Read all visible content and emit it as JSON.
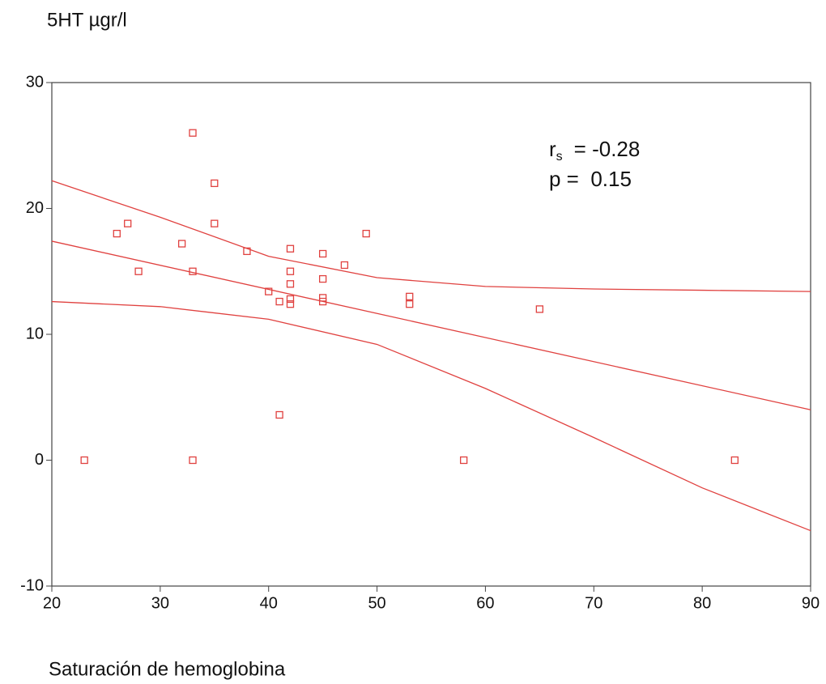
{
  "chart_data": {
    "type": "scatter",
    "y_label": "5HT µgr/l",
    "x_label": "Saturación de hemoglobina",
    "annotations": [
      {
        "symbol": "r",
        "subscript": "s",
        "text": "= -0.28"
      },
      {
        "text": "p =  0.15"
      }
    ],
    "xlim": [
      20,
      90
    ],
    "ylim": [
      -10,
      30
    ],
    "xticks": [
      20,
      30,
      40,
      50,
      60,
      70,
      80,
      90
    ],
    "yticks": [
      -10,
      0,
      10,
      20,
      30
    ],
    "grid": false,
    "series": [
      {
        "type": "scatter",
        "marker": "square",
        "color": "#e0413f",
        "x": [
          23,
          26,
          27,
          28,
          32,
          33,
          33,
          33,
          35,
          35,
          38,
          40,
          41,
          41,
          42,
          42,
          42,
          42,
          42,
          45,
          45,
          45,
          45,
          47,
          49,
          53,
          53,
          58,
          65,
          83
        ],
        "values": [
          0,
          18,
          18.8,
          15,
          17.2,
          26,
          15,
          0,
          22,
          18.8,
          16.6,
          13.4,
          12.6,
          3.6,
          16.8,
          15,
          14,
          12.8,
          12.4,
          16.4,
          14.4,
          12.9,
          12.6,
          15.5,
          18,
          13,
          12.4,
          0,
          12,
          0
        ]
      },
      {
        "type": "line",
        "color": "#e0413f",
        "x": [
          20,
          90
        ],
        "values": [
          17.4,
          4.0
        ]
      },
      {
        "type": "line",
        "color": "#e0413f",
        "x": [
          20,
          30,
          40,
          50,
          60,
          70,
          80,
          90
        ],
        "values": [
          22.2,
          19.3,
          16.2,
          14.5,
          13.8,
          13.6,
          13.5,
          13.4
        ]
      },
      {
        "type": "line",
        "color": "#e0413f",
        "x": [
          20,
          30,
          40,
          50,
          60,
          70,
          80,
          90
        ],
        "values": [
          12.6,
          12.2,
          11.2,
          9.2,
          5.7,
          1.8,
          -2.2,
          -5.6
        ]
      }
    ]
  }
}
